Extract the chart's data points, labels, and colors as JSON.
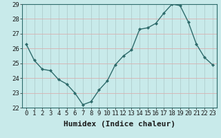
{
  "x": [
    0,
    1,
    2,
    3,
    4,
    5,
    6,
    7,
    8,
    9,
    10,
    11,
    12,
    13,
    14,
    15,
    16,
    17,
    18,
    19,
    20,
    21,
    22,
    23
  ],
  "y": [
    26.3,
    25.2,
    24.6,
    24.5,
    23.9,
    23.6,
    23.0,
    22.2,
    22.4,
    23.2,
    23.8,
    24.9,
    25.5,
    25.9,
    27.3,
    27.4,
    27.7,
    28.4,
    29.0,
    28.9,
    27.8,
    26.3,
    25.4,
    24.9
  ],
  "xlabel": "Humidex (Indice chaleur)",
  "ylim": [
    22,
    29
  ],
  "xlim": [
    -0.5,
    23.5
  ],
  "yticks": [
    22,
    23,
    24,
    25,
    26,
    27,
    28,
    29
  ],
  "xticks": [
    0,
    1,
    2,
    3,
    4,
    5,
    6,
    7,
    8,
    9,
    10,
    11,
    12,
    13,
    14,
    15,
    16,
    17,
    18,
    19,
    20,
    21,
    22,
    23
  ],
  "line_color": "#2e6b6b",
  "marker": "D",
  "marker_size": 2.0,
  "bg_color": "#c8eaea",
  "plot_bg_color": "#c8eaea",
  "hgrid_color": "#d8b0b0",
  "vgrid_color": "#b0cece",
  "tick_label_color": "#1a1a1a",
  "xlabel_fontsize": 8,
  "tick_fontsize": 6.5,
  "linewidth": 1.0
}
